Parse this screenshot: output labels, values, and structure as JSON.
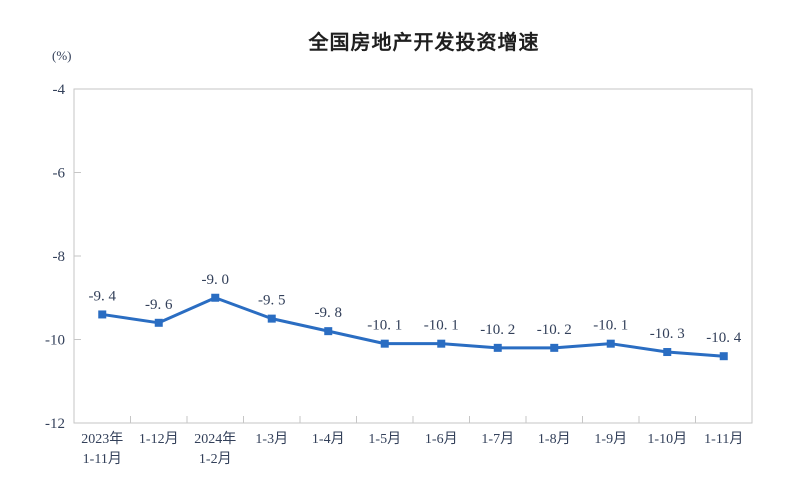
{
  "chart_data": {
    "type": "line",
    "title": "全国房地产开发投资增速",
    "ylabel": "(%)",
    "xlabel": "",
    "categories": [
      "2023年\n1-11月",
      "1-12月",
      "2024年\n1-2月",
      "1-3月",
      "1-4月",
      "1-5月",
      "1-6月",
      "1-7月",
      "1-8月",
      "1-9月",
      "1-10月",
      "1-11月"
    ],
    "values": [
      -9.4,
      -9.6,
      -9.0,
      -9.5,
      -9.8,
      -10.1,
      -10.1,
      -10.2,
      -10.2,
      -10.1,
      -10.3,
      -10.4
    ],
    "point_labels": [
      "-9. 4",
      "-9. 6",
      "-9. 0",
      "-9. 5",
      "-9. 8",
      "-10. 1",
      "-10. 1",
      "-10. 2",
      "-10. 2",
      "-10. 1",
      "-10. 3",
      "-10. 4"
    ],
    "y_ticks": [
      -4,
      -6,
      -8,
      -10,
      -12
    ],
    "ylim": [
      -12,
      -4
    ],
    "grid": false,
    "legend": "none",
    "colors": {
      "line": "#2a6dc2",
      "marker": "#2a6dc2",
      "axis": "#c6c6c6",
      "tick_text": "#33405a",
      "data_label": "#33405a",
      "title": "#1f1f1f"
    }
  }
}
